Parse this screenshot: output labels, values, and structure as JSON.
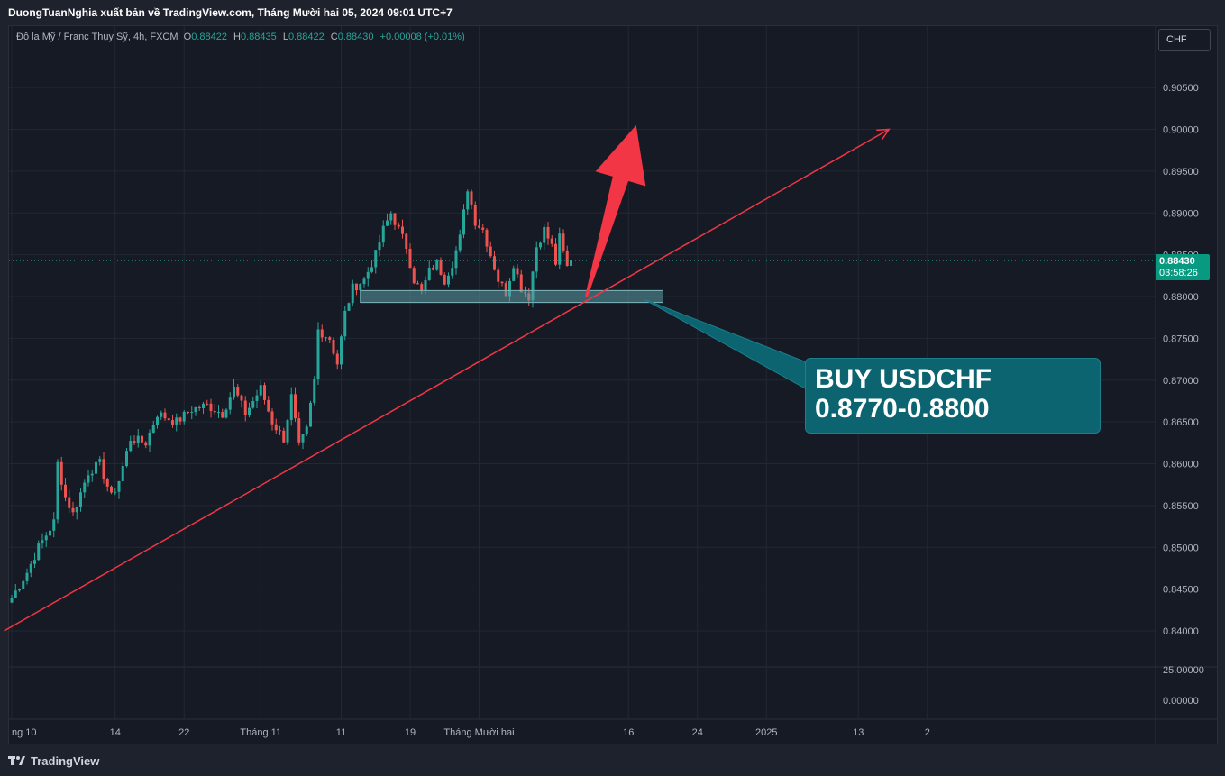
{
  "header": {
    "publisher_line": "DuongTuanNghia xuất bản về TradingView.com, Tháng Mười hai 05, 2024 09:01 UTC+7"
  },
  "legend": {
    "symbol": "Đô la Mỹ / Franc Thụy Sỹ, 4h, FXCM",
    "open_label": "O",
    "open": "0.88422",
    "high_label": "H",
    "high": "0.88435",
    "low_label": "L",
    "low": "0.88422",
    "close_label": "C",
    "close": "0.88430",
    "change": "+0.00008 (+0.01%)"
  },
  "currency": "CHF",
  "price_tag": {
    "price": "0.88430",
    "countdown": "03:58:26"
  },
  "annotation": {
    "line1": "BUY USDCHF",
    "line2": "0.8770-0.8800"
  },
  "footer": {
    "brand": "TradingView"
  },
  "colors": {
    "up": "#26a69a",
    "down": "#ef5350",
    "trendline": "#f23645",
    "zone": "#5b9ea6",
    "callout": "#0b6470"
  },
  "chart_data": {
    "type": "candlestick",
    "symbol": "USDCHF",
    "timeframe": "4h",
    "y_ticks": [
      "0.90500",
      "0.90000",
      "0.89500",
      "0.89000",
      "0.88500",
      "0.88000",
      "0.87500",
      "0.87000",
      "0.86500",
      "0.86000",
      "0.85500",
      "0.85000",
      "0.84500",
      "0.84000"
    ],
    "indicator_ticks": [
      "25.00000",
      "0.00000"
    ],
    "ylim": [
      0.8375,
      0.9075
    ],
    "x_ticks": [
      {
        "label": "ng 10",
        "bar": 0
      },
      {
        "label": "14",
        "bar": 27
      },
      {
        "label": "22",
        "bar": 45
      },
      {
        "label": "Tháng 11",
        "bar": 65
      },
      {
        "label": "11",
        "bar": 86
      },
      {
        "label": "19",
        "bar": 104
      },
      {
        "label": "Tháng Mười hai",
        "bar": 122
      },
      {
        "label": "16",
        "bar": 161
      },
      {
        "label": "24",
        "bar": 179
      },
      {
        "label": "2025",
        "bar": 197
      },
      {
        "label": "13",
        "bar": 221
      },
      {
        "label": "2",
        "bar": 239
      }
    ],
    "ohlc_anchor_closes": [
      [
        0,
        0.844
      ],
      [
        4,
        0.847
      ],
      [
        7,
        0.85
      ],
      [
        11,
        0.853
      ],
      [
        12,
        0.86
      ],
      [
        14,
        0.856
      ],
      [
        16,
        0.854
      ],
      [
        20,
        0.859
      ],
      [
        23,
        0.86
      ],
      [
        26,
        0.856
      ],
      [
        28,
        0.858
      ],
      [
        31,
        0.863
      ],
      [
        35,
        0.8625
      ],
      [
        38,
        0.866
      ],
      [
        43,
        0.865
      ],
      [
        47,
        0.8665
      ],
      [
        51,
        0.867
      ],
      [
        55,
        0.866
      ],
      [
        58,
        0.869
      ],
      [
        61,
        0.866
      ],
      [
        65,
        0.869
      ],
      [
        68,
        0.865
      ],
      [
        71,
        0.863
      ],
      [
        73,
        0.868
      ],
      [
        75,
        0.862
      ],
      [
        77,
        0.864
      ],
      [
        79,
        0.87
      ],
      [
        80,
        0.876
      ],
      [
        83,
        0.875
      ],
      [
        85,
        0.872
      ],
      [
        87,
        0.878
      ],
      [
        89,
        0.881
      ],
      [
        92,
        0.882
      ],
      [
        95,
        0.885
      ],
      [
        97,
        0.888
      ],
      [
        99,
        0.89
      ],
      [
        101,
        0.888
      ],
      [
        103,
        0.886
      ],
      [
        105,
        0.882
      ],
      [
        107,
        0.8805
      ],
      [
        109,
        0.883
      ],
      [
        111,
        0.884
      ],
      [
        113,
        0.882
      ],
      [
        115,
        0.884
      ],
      [
        117,
        0.887
      ],
      [
        119,
        0.893
      ],
      [
        121,
        0.889
      ],
      [
        123,
        0.888
      ],
      [
        125,
        0.885
      ],
      [
        127,
        0.882
      ],
      [
        129,
        0.8805
      ],
      [
        131,
        0.884
      ],
      [
        133,
        0.881
      ],
      [
        135,
        0.88
      ],
      [
        137,
        0.886
      ],
      [
        139,
        0.888
      ],
      [
        141,
        0.886
      ],
      [
        142,
        0.884
      ],
      [
        143,
        0.887
      ],
      [
        145,
        0.8835
      ],
      [
        146,
        0.8843
      ]
    ],
    "last_close": 0.8843,
    "trendline": {
      "start": {
        "bar": -2,
        "price": 0.84
      },
      "end": {
        "bar": 229,
        "price": 0.9
      }
    },
    "zone": {
      "bar_start": 91,
      "bar_end": 170,
      "low": 0.8795,
      "high": 0.8805
    },
    "up_arrow": {
      "from": {
        "bar": 150,
        "price": 0.88
      },
      "to": {
        "bar": 163,
        "price": 0.9005
      }
    }
  }
}
